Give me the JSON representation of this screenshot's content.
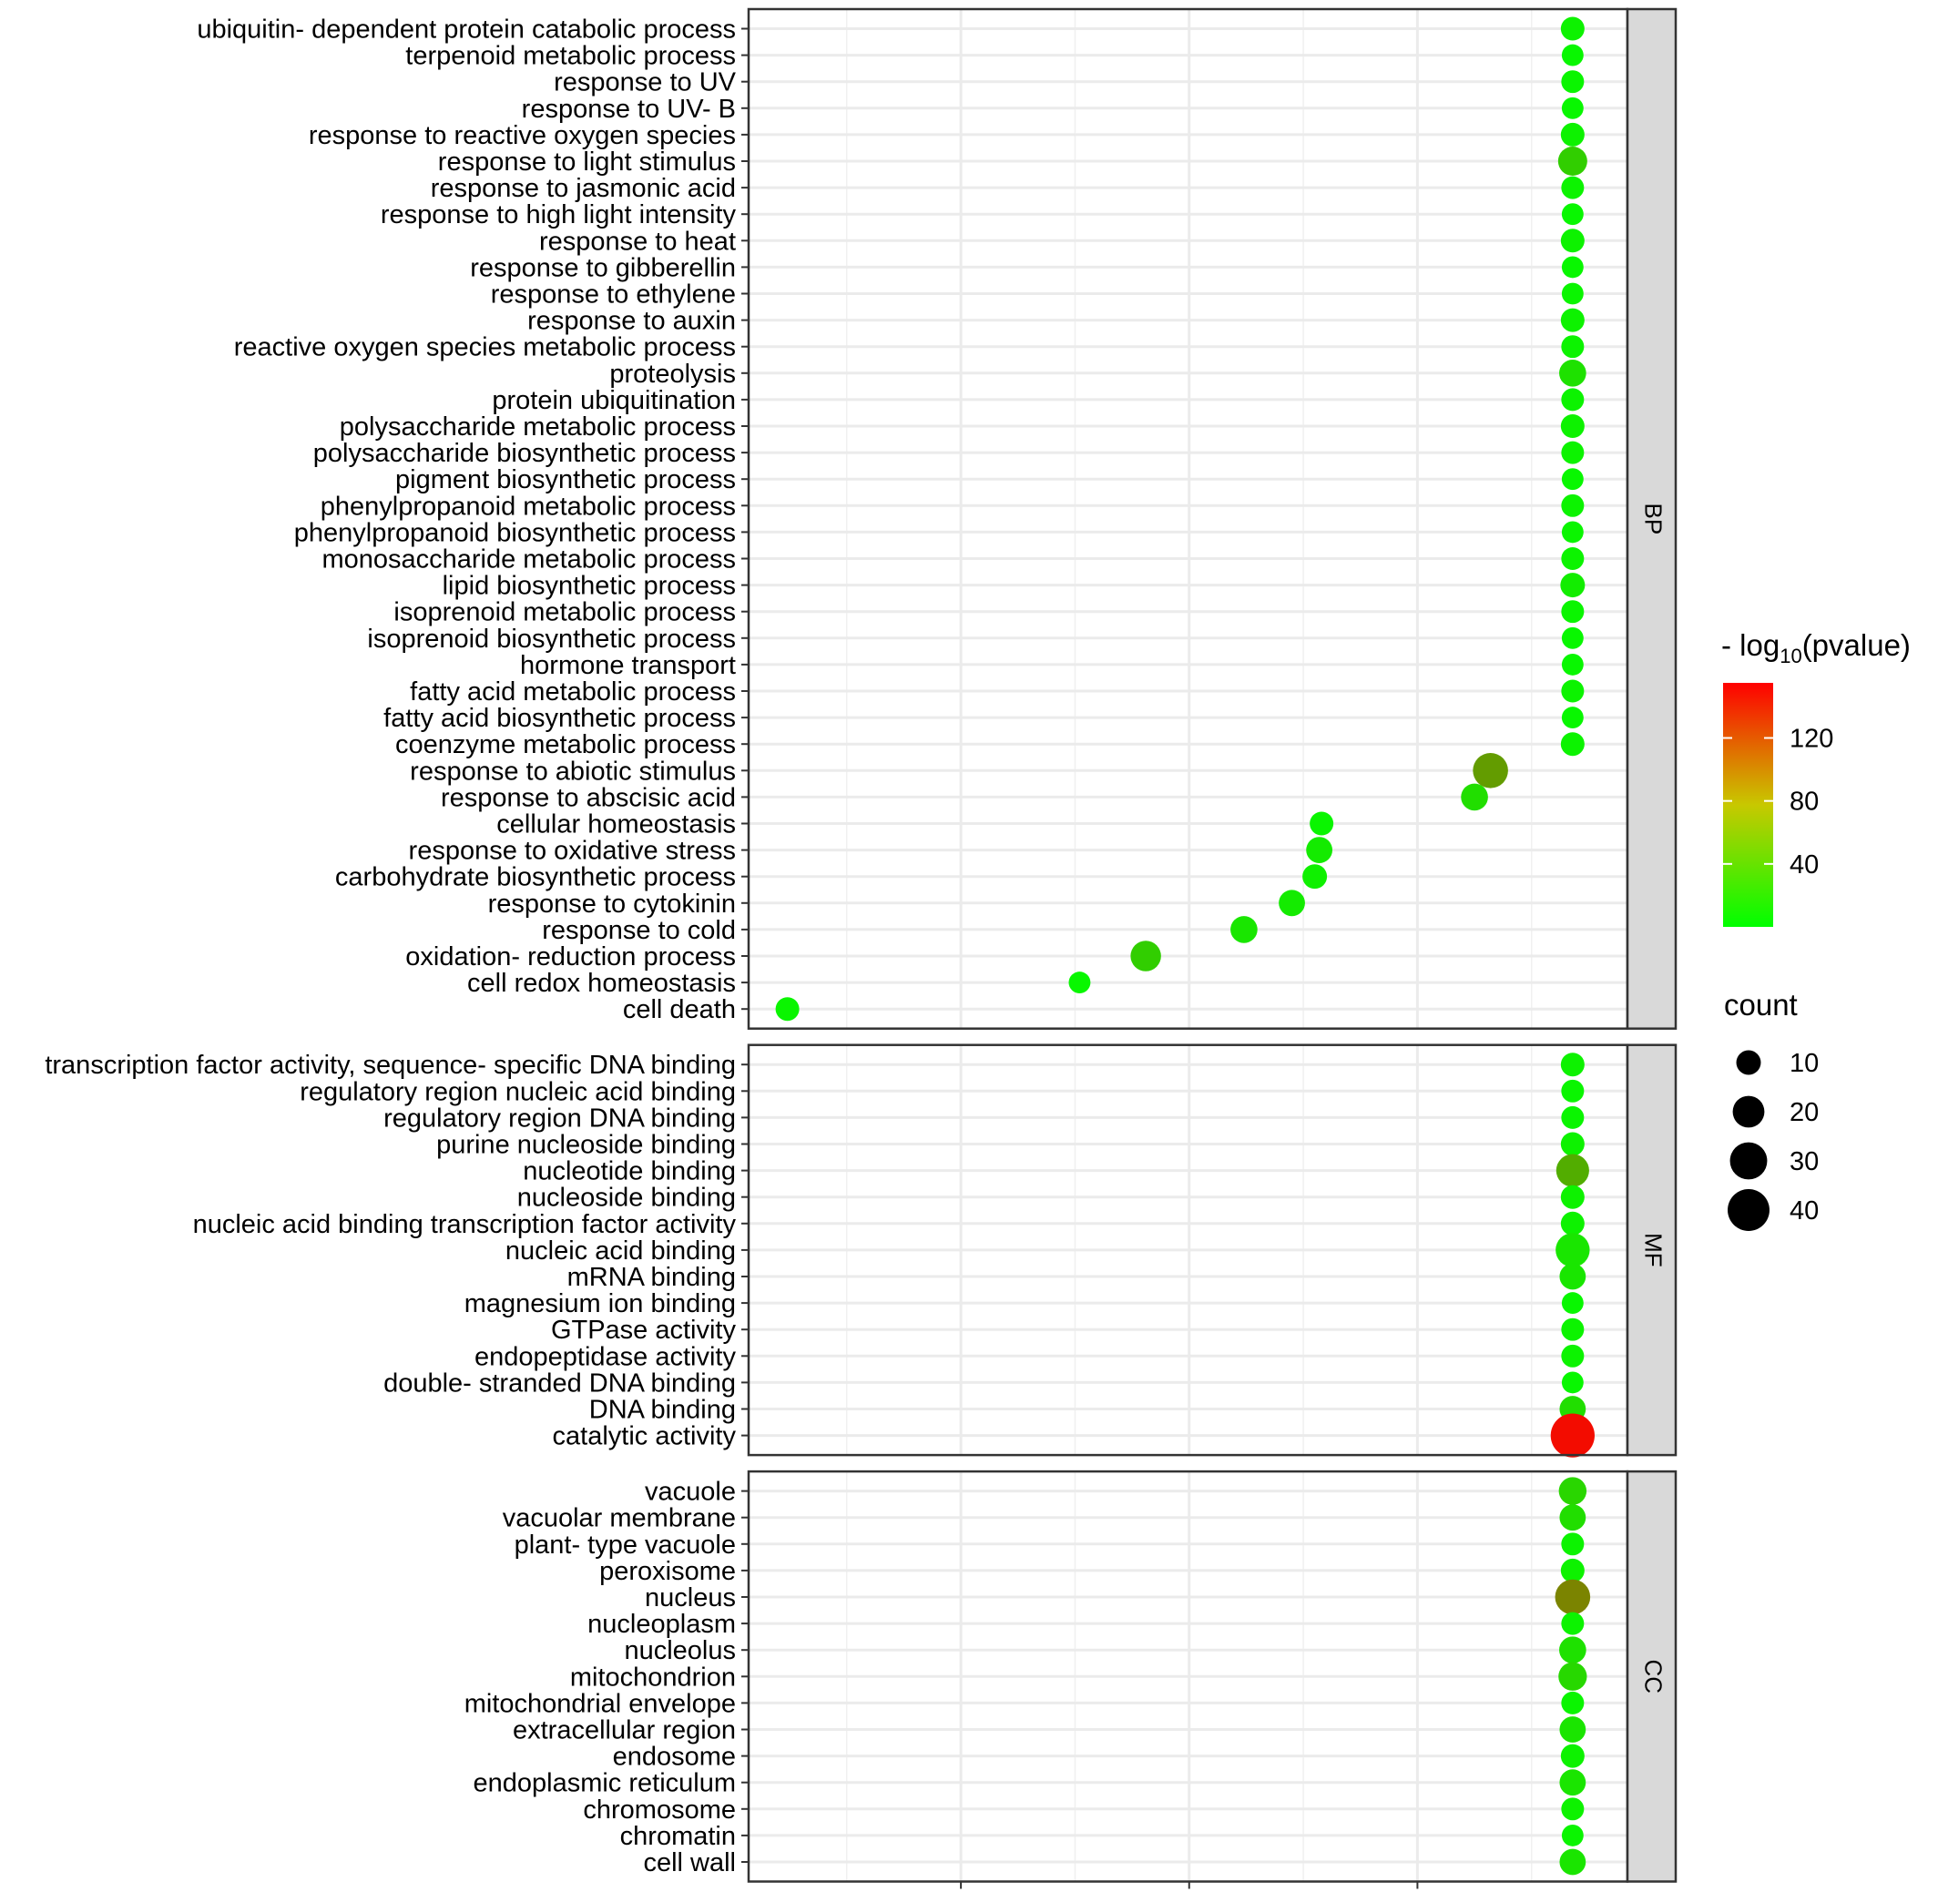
{
  "chart_data": {
    "type": "scatter",
    "x_ticks": [
      "1.014",
      "1.015",
      "1.016"
    ],
    "xlim": [
      1.01307,
      1.01692
    ],
    "facets": [
      {
        "name": "BP",
        "points": [
          {
            "term": "ubiquitin- dependent protein catabolic process",
            "x": 1.01668,
            "count": 9,
            "log_p": 8
          },
          {
            "term": "terpenoid metabolic process",
            "x": 1.01668,
            "count": 7,
            "log_p": 5
          },
          {
            "term": "response to UV",
            "x": 1.01668,
            "count": 8,
            "log_p": 6
          },
          {
            "term": "response to UV- B",
            "x": 1.01668,
            "count": 7,
            "log_p": 5
          },
          {
            "term": "response to reactive oxygen species",
            "x": 1.01668,
            "count": 9,
            "log_p": 8
          },
          {
            "term": "response to light stimulus",
            "x": 1.01668,
            "count": 16,
            "log_p": 30
          },
          {
            "term": "response to jasmonic acid",
            "x": 1.01668,
            "count": 8,
            "log_p": 7
          },
          {
            "term": "response to high light intensity",
            "x": 1.01668,
            "count": 7,
            "log_p": 5
          },
          {
            "term": "response to heat",
            "x": 1.01668,
            "count": 9,
            "log_p": 8
          },
          {
            "term": "response to gibberellin",
            "x": 1.01668,
            "count": 7,
            "log_p": 5
          },
          {
            "term": "response to ethylene",
            "x": 1.01668,
            "count": 7,
            "log_p": 6
          },
          {
            "term": "response to auxin",
            "x": 1.01668,
            "count": 9,
            "log_p": 8
          },
          {
            "term": "reactive oxygen species metabolic process",
            "x": 1.01668,
            "count": 8,
            "log_p": 7
          },
          {
            "term": "proteolysis",
            "x": 1.01668,
            "count": 13,
            "log_p": 18
          },
          {
            "term": "protein ubiquitination",
            "x": 1.01668,
            "count": 8,
            "log_p": 7
          },
          {
            "term": "polysaccharide metabolic process",
            "x": 1.01668,
            "count": 9,
            "log_p": 8
          },
          {
            "term": "polysaccharide biosynthetic process",
            "x": 1.01668,
            "count": 8,
            "log_p": 7
          },
          {
            "term": "pigment biosynthetic process",
            "x": 1.01668,
            "count": 7,
            "log_p": 5
          },
          {
            "term": "phenylpropanoid metabolic process",
            "x": 1.01668,
            "count": 8,
            "log_p": 7
          },
          {
            "term": "phenylpropanoid biosynthetic process",
            "x": 1.01668,
            "count": 7,
            "log_p": 6
          },
          {
            "term": "monosaccharide metabolic process",
            "x": 1.01668,
            "count": 8,
            "log_p": 7
          },
          {
            "term": "lipid biosynthetic process",
            "x": 1.01668,
            "count": 10,
            "log_p": 11
          },
          {
            "term": "isoprenoid metabolic process",
            "x": 1.01668,
            "count": 8,
            "log_p": 6
          },
          {
            "term": "isoprenoid biosynthetic process",
            "x": 1.01668,
            "count": 7,
            "log_p": 5
          },
          {
            "term": "hormone transport",
            "x": 1.01668,
            "count": 7,
            "log_p": 5
          },
          {
            "term": "fatty acid metabolic process",
            "x": 1.01668,
            "count": 8,
            "log_p": 7
          },
          {
            "term": "fatty acid biosynthetic process",
            "x": 1.01668,
            "count": 7,
            "log_p": 5
          },
          {
            "term": "coenzyme metabolic process",
            "x": 1.01668,
            "count": 9,
            "log_p": 7
          },
          {
            "term": "response to abiotic stimulus",
            "x": 1.01632,
            "count": 26,
            "log_p": 60
          },
          {
            "term": "response to abscisic acid",
            "x": 1.01625,
            "count": 13,
            "log_p": 20
          },
          {
            "term": "cellular homeostasis",
            "x": 1.01558,
            "count": 9,
            "log_p": 6
          },
          {
            "term": "response to oxidative stress",
            "x": 1.01557,
            "count": 12,
            "log_p": 12
          },
          {
            "term": "carbohydrate biosynthetic process",
            "x": 1.01555,
            "count": 10,
            "log_p": 9
          },
          {
            "term": "response to cytokinin",
            "x": 1.01545,
            "count": 12,
            "log_p": 12
          },
          {
            "term": "response to cold",
            "x": 1.01524,
            "count": 13,
            "log_p": 15
          },
          {
            "term": "oxidation- reduction process",
            "x": 1.01481,
            "count": 18,
            "log_p": 30
          },
          {
            "term": "cell redox homeostasis",
            "x": 1.01452,
            "count": 7,
            "log_p": 5
          },
          {
            "term": "cell death",
            "x": 1.01324,
            "count": 9,
            "log_p": 6
          }
        ]
      },
      {
        "name": "MF",
        "points": [
          {
            "term": "transcription factor activity, sequence- specific DNA binding",
            "x": 1.01668,
            "count": 9,
            "log_p": 8
          },
          {
            "term": "regulatory region nucleic acid binding",
            "x": 1.01668,
            "count": 8,
            "log_p": 6
          },
          {
            "term": "regulatory region DNA binding",
            "x": 1.01668,
            "count": 8,
            "log_p": 6
          },
          {
            "term": "purine nucleoside binding",
            "x": 1.01668,
            "count": 9,
            "log_p": 8
          },
          {
            "term": "nucleotide binding",
            "x": 1.01668,
            "count": 22,
            "log_p": 50
          },
          {
            "term": "nucleoside binding",
            "x": 1.01668,
            "count": 9,
            "log_p": 8
          },
          {
            "term": "nucleic acid binding transcription factor activity",
            "x": 1.01668,
            "count": 9,
            "log_p": 8
          },
          {
            "term": "nucleic acid binding",
            "x": 1.01668,
            "count": 24,
            "log_p": 15
          },
          {
            "term": "mRNA binding",
            "x": 1.01668,
            "count": 12,
            "log_p": 15
          },
          {
            "term": "magnesium ion binding",
            "x": 1.01668,
            "count": 7,
            "log_p": 5
          },
          {
            "term": "GTPase activity",
            "x": 1.01668,
            "count": 8,
            "log_p": 7
          },
          {
            "term": "endopeptidase activity",
            "x": 1.01668,
            "count": 8,
            "log_p": 7
          },
          {
            "term": "double- stranded DNA binding",
            "x": 1.01668,
            "count": 7,
            "log_p": 5
          },
          {
            "term": "DNA binding",
            "x": 1.01668,
            "count": 12,
            "log_p": 20
          },
          {
            "term": "catalytic activity",
            "x": 1.01668,
            "count": 45,
            "log_p": 148
          }
        ]
      },
      {
        "name": "CC",
        "points": [
          {
            "term": "vacuole",
            "x": 1.01668,
            "count": 14,
            "log_p": 25
          },
          {
            "term": "vacuolar membrane",
            "x": 1.01668,
            "count": 12,
            "log_p": 20
          },
          {
            "term": "plant- type vacuole",
            "x": 1.01668,
            "count": 8,
            "log_p": 7
          },
          {
            "term": "peroxisome",
            "x": 1.01668,
            "count": 9,
            "log_p": 8
          },
          {
            "term": "nucleus",
            "x": 1.01668,
            "count": 26,
            "log_p": 75
          },
          {
            "term": "nucleoplasm",
            "x": 1.01668,
            "count": 8,
            "log_p": 7
          },
          {
            "term": "nucleolus",
            "x": 1.01668,
            "count": 13,
            "log_p": 18
          },
          {
            "term": "mitochondrion",
            "x": 1.01668,
            "count": 15,
            "log_p": 24
          },
          {
            "term": "mitochondrial envelope",
            "x": 1.01668,
            "count": 8,
            "log_p": 6
          },
          {
            "term": "extracellular region",
            "x": 1.01668,
            "count": 12,
            "log_p": 16
          },
          {
            "term": "endosome",
            "x": 1.01668,
            "count": 9,
            "log_p": 8
          },
          {
            "term": "endoplasmic reticulum",
            "x": 1.01668,
            "count": 12,
            "log_p": 16
          },
          {
            "term": "chromosome",
            "x": 1.01668,
            "count": 8,
            "log_p": 8
          },
          {
            "term": "chromatin",
            "x": 1.01668,
            "count": 7,
            "log_p": 6
          },
          {
            "term": "cell wall",
            "x": 1.01668,
            "count": 12,
            "log_p": 16
          }
        ]
      }
    ],
    "color_legend": {
      "title_prefix": "- log",
      "title_sub": "10",
      "title_suffix": "(pvalue)",
      "ticks": [
        40,
        80,
        120
      ],
      "range": [
        0,
        155
      ],
      "low_color": "#00ff00",
      "high_color": "#ff0000"
    },
    "size_legend": {
      "title": "count",
      "values": [
        10,
        20,
        30,
        40
      ]
    },
    "legend_position": "right",
    "grid": true
  }
}
